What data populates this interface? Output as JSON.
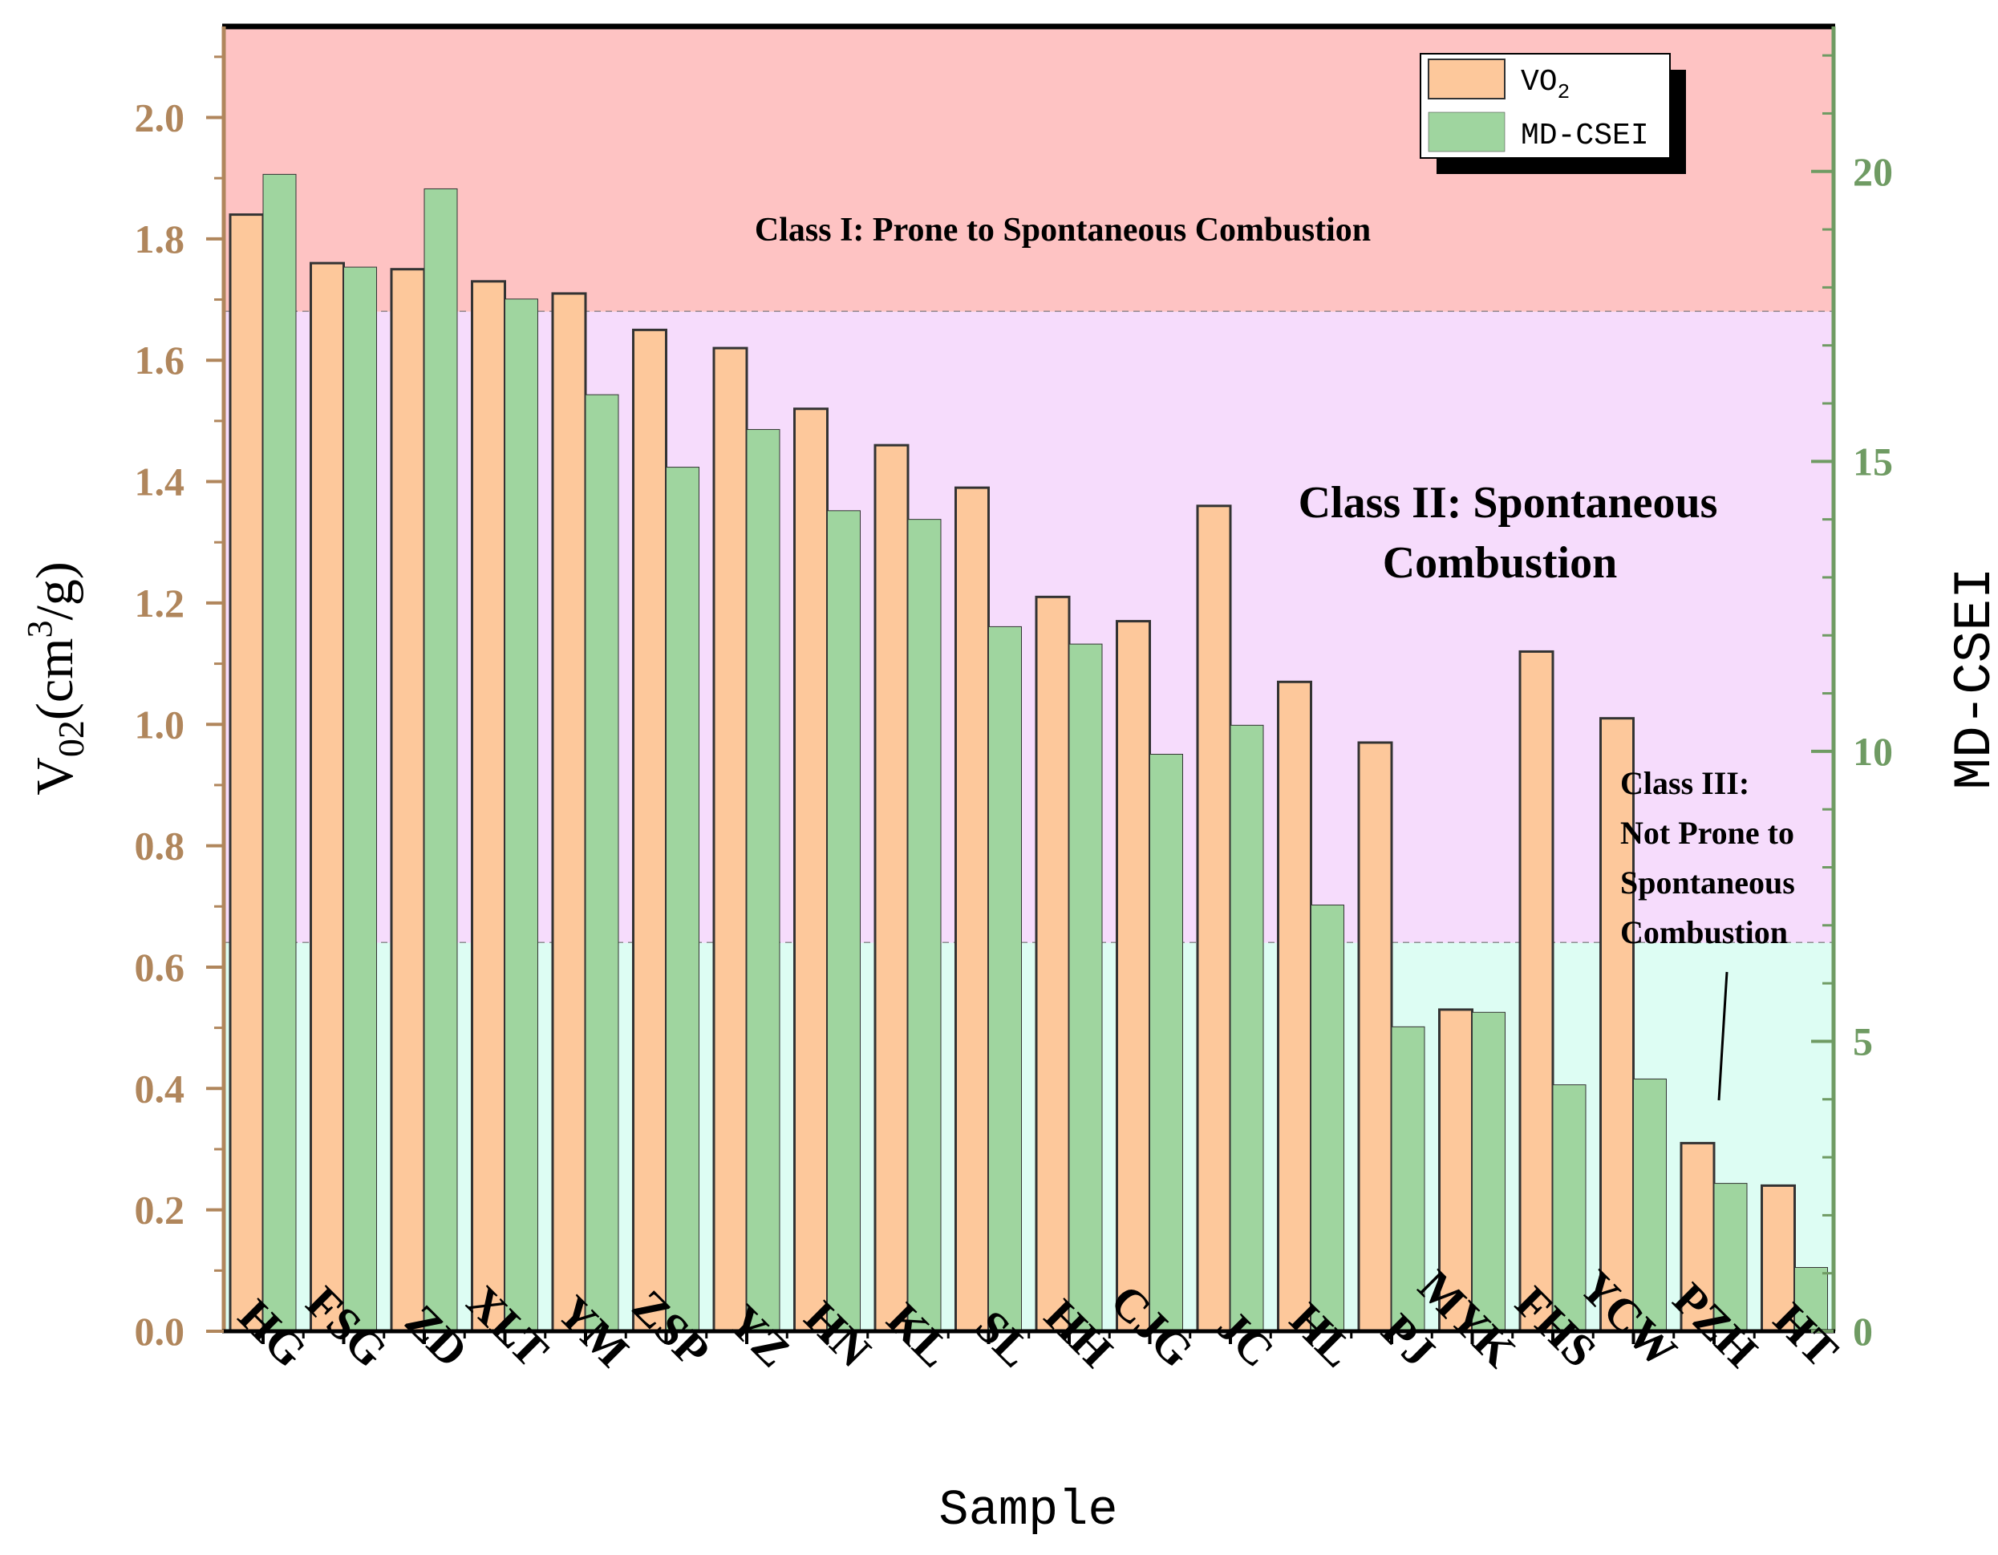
{
  "chart_data": {
    "type": "bar",
    "categories": [
      "HG",
      "FSG",
      "ZD",
      "XLT",
      "YM",
      "ZSP",
      "YZ",
      "HN",
      "KL",
      "SL",
      "HH",
      "CJG",
      "JC",
      "HL",
      "PJ",
      "MYK",
      "FHS",
      "YCW",
      "PZH",
      "HT"
    ],
    "series": [
      {
        "name": "VO2",
        "axis": "left",
        "color": "#fdc89b",
        "values": [
          1.84,
          1.76,
          1.75,
          1.73,
          1.71,
          1.65,
          1.62,
          1.52,
          1.46,
          1.39,
          1.21,
          1.17,
          1.36,
          1.07,
          0.97,
          0.53,
          1.12,
          1.01,
          0.31,
          0.24
        ]
      },
      {
        "name": "MD-CSEI",
        "axis": "right",
        "color": "#9fd59f",
        "values": [
          19.95,
          18.35,
          19.7,
          17.8,
          16.15,
          14.9,
          15.55,
          14.15,
          14.0,
          12.15,
          11.85,
          9.95,
          10.45,
          7.35,
          5.25,
          5.5,
          4.25,
          4.35,
          2.55,
          1.1
        ]
      }
    ],
    "xlabel": "Sample",
    "ylabel_left": "V02(cm3/g)",
    "ylabel_left_parts": {
      "main": "V",
      "sub": "02",
      "unit_start": "(cm",
      "sup": "3",
      "unit_end": "/g)"
    },
    "ylabel_right": "MD-CSEI",
    "ylim_left": [
      0,
      2.15
    ],
    "ylim_right": [
      0,
      22.5
    ],
    "yticks_left": [
      "0.0",
      "0.2",
      "0.4",
      "0.6",
      "0.8",
      "1.0",
      "1.2",
      "1.4",
      "1.6",
      "1.8",
      "2.0"
    ],
    "yticks_right": [
      "0",
      "5",
      "10",
      "15",
      "20"
    ],
    "regions": [
      {
        "from": 1.68,
        "to": 2.15,
        "color": "#fec3c3"
      },
      {
        "from": 0.64,
        "to": 1.68,
        "color": "#f6dcfc"
      },
      {
        "from": 0.0,
        "to": 0.64,
        "color": "#ddfdf3"
      }
    ],
    "annotations": {
      "class1": "Class I: Prone to Spontaneous Combustion",
      "class2_line1": "Class II: Spontaneous",
      "class2_line2": "Combustion",
      "class3_line1": "Class III:",
      "class3_line2": "Not Prone to",
      "class3_line3": "Spontaneous",
      "class3_line4": "Combustion"
    },
    "legend": {
      "placement": "top-right",
      "vo2_main": "VO",
      "vo2_sub": "2",
      "md_csei": "MD-CSEI"
    },
    "grid": false
  }
}
